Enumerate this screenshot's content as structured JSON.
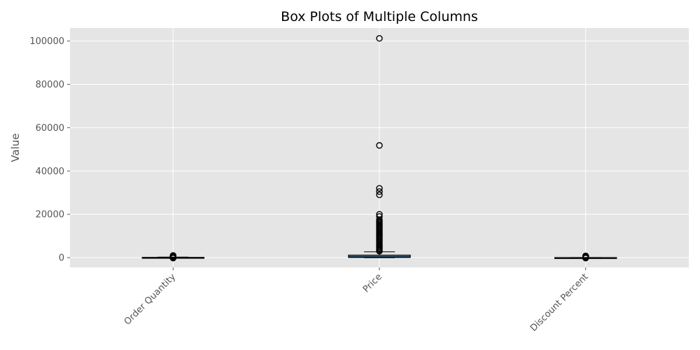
{
  "chart_data": {
    "type": "boxplot",
    "title": "Box Plots of Multiple Columns",
    "xlabel": "",
    "ylabel": "Value",
    "categories": [
      "Order Quantity",
      "Price",
      "Discount Percent"
    ],
    "ylim": [
      -4500,
      106000
    ],
    "yticks": [
      0,
      20000,
      40000,
      60000,
      80000,
      100000
    ],
    "grid": true,
    "colors": {
      "background": "#e5e5e5",
      "grid": "#ffffff",
      "box_fill": "#3f7fb0",
      "box_edge": "#000000",
      "median": "#000000",
      "whisker": "#000000",
      "flier": "#000000"
    },
    "boxes": [
      {
        "name": "Order Quantity",
        "q1": 20,
        "median": 80,
        "q3": 150,
        "whisker_low": 0,
        "whisker_high": 250,
        "fliers": [
          300,
          400,
          500,
          600,
          700,
          800,
          900,
          1000,
          -100,
          -200
        ]
      },
      {
        "name": "Price",
        "q1": 80,
        "median": 350,
        "q3": 1200,
        "whisker_low": 0,
        "whisker_high": 2700,
        "fliers": [
          3000,
          3500,
          4000,
          4500,
          5000,
          5500,
          6000,
          6500,
          7000,
          7500,
          8000,
          8500,
          9000,
          9500,
          10000,
          10500,
          11000,
          11500,
          12000,
          12500,
          13000,
          13500,
          14000,
          14500,
          15000,
          15500,
          16000,
          16500,
          17000,
          17500,
          19000,
          20000,
          29000,
          30500,
          32000,
          51800,
          101200
        ]
      },
      {
        "name": "Discount Percent",
        "q1": 5,
        "median": 20,
        "q3": 35,
        "whisker_low": 0,
        "whisker_high": 60,
        "fliers": [
          100,
          200,
          300,
          400,
          500,
          600,
          700,
          800,
          -100,
          -200
        ]
      }
    ]
  }
}
